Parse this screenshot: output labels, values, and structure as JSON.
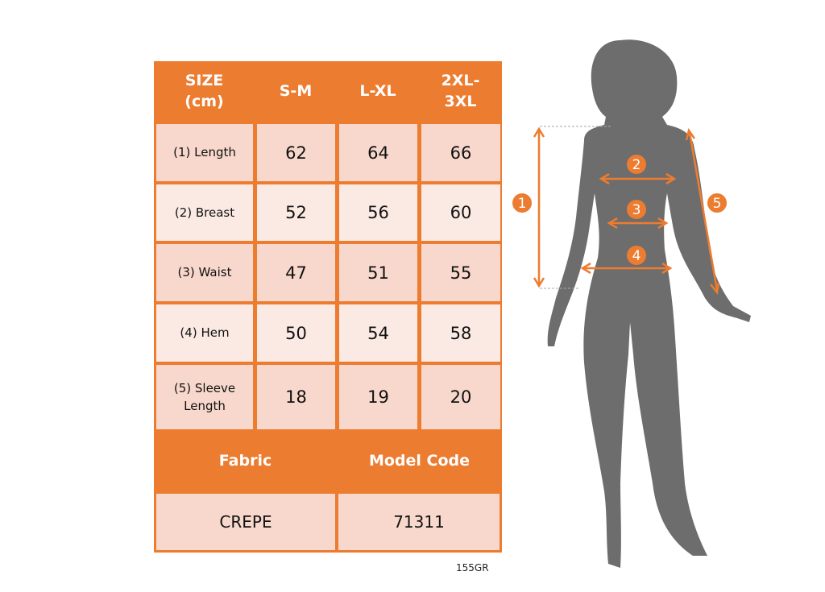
{
  "header": {
    "size_label": "SIZE\n(cm)",
    "sizes": [
      "S-M",
      "L-XL",
      "2XL-\n3XL"
    ]
  },
  "rows": [
    {
      "label": "(1) Length",
      "values": [
        "62",
        "64",
        "66"
      ]
    },
    {
      "label": "(2) Breast",
      "values": [
        "52",
        "56",
        "60"
      ]
    },
    {
      "label": "(3) Waist",
      "values": [
        "47",
        "51",
        "55"
      ]
    },
    {
      "label": "(4) Hem",
      "values": [
        "50",
        "54",
        "58"
      ]
    },
    {
      "label": "(5) Sleeve\nLength",
      "values": [
        "18",
        "19",
        "20"
      ]
    }
  ],
  "footer": {
    "fabric_label": "Fabric",
    "model_code_label": "Model Code",
    "fabric": "CREPE",
    "model_code": "71311"
  },
  "product_code": "155GR",
  "figure_markers": [
    "1",
    "2",
    "3",
    "4",
    "5"
  ],
  "colors": {
    "accent": "#ec7c30",
    "row_dark": "#f8d8cc",
    "row_light": "#fbeae4",
    "silhouette": "#6d6d6d"
  }
}
